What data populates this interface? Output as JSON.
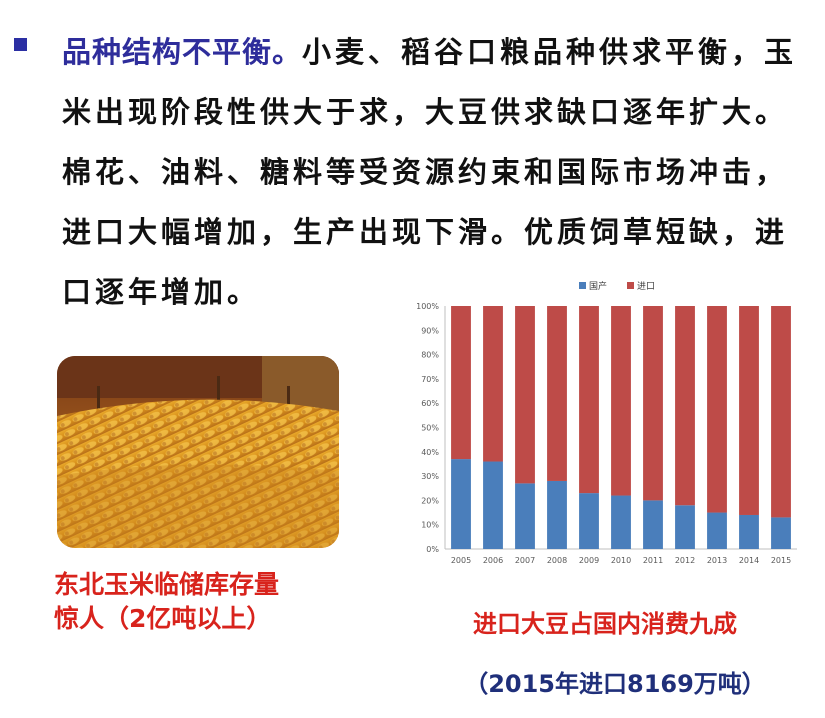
{
  "text": {
    "heading": "品种结构不平衡。",
    "body": "小麦、稻谷口粮品种供求平衡，玉米出现阶段性供大于求，大豆供求缺口逐年扩大。棉花、油料、糖料等受资源约束和国际市场冲击，进口大幅增加，生产出现下滑。优质饲草短缺，进口逐年增加。"
  },
  "photo": {
    "caption_line1": "东北玉米临储库存量",
    "caption_line2": "惊人（2亿吨以上）"
  },
  "captions": {
    "main": "进口大豆占国内消费九成",
    "sub": "（2015年进口8169万吨）"
  },
  "colors": {
    "heading": "#2e2d9b",
    "domestic": "#4a7ebb",
    "import": "#be4b48",
    "caption_red": "#d8231c",
    "caption_blue": "#1f2f7a"
  },
  "chart_data": {
    "type": "bar",
    "stacked": true,
    "categories": [
      "2005",
      "2006",
      "2007",
      "2008",
      "2009",
      "2010",
      "2011",
      "2012",
      "2013",
      "2014",
      "2015"
    ],
    "series": [
      {
        "name": "国产",
        "values": [
          37,
          36,
          27,
          28,
          23,
          22,
          20,
          18,
          15,
          14,
          13
        ]
      },
      {
        "name": "进口",
        "values": [
          63,
          64,
          73,
          72,
          77,
          78,
          80,
          82,
          85,
          86,
          87
        ]
      }
    ],
    "y_ticks": [
      "0%",
      "10%",
      "20%",
      "30%",
      "40%",
      "50%",
      "60%",
      "70%",
      "80%",
      "90%",
      "100%"
    ],
    "ylim": [
      0,
      100
    ],
    "legend": "top-center",
    "grid": false
  }
}
